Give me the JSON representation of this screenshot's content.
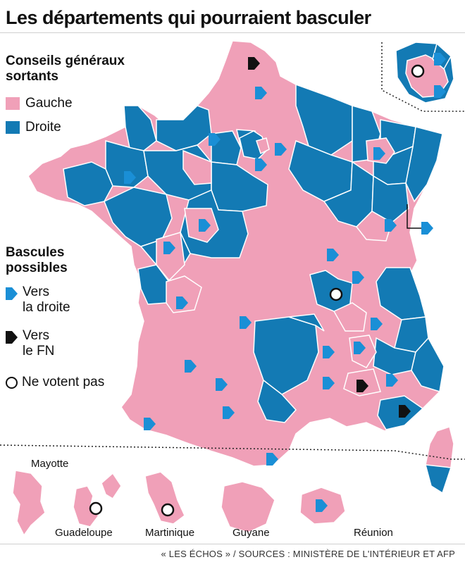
{
  "title": "Les départements qui pourraient basculer",
  "legend": {
    "councils_heading_line1": "Conseils généraux",
    "councils_heading_line2": "sortants",
    "left_label": "Gauche",
    "right_label": "Droite",
    "swing_heading_line1": "Bascules",
    "swing_heading_line2": "possibles",
    "to_right_line1": "Vers",
    "to_right_line2": "la droite",
    "to_fn_line1": "Vers",
    "to_fn_line2": "le FN",
    "no_vote_label": "Ne votent pas"
  },
  "colors": {
    "gauche": "#f0a0b8",
    "droite": "#137ab4",
    "arrow_right": "#1a8fd6",
    "arrow_fn": "#111111",
    "border": "#ffffff"
  },
  "overseas": {
    "mayotte": "Mayotte",
    "guadeloupe": "Guadeloupe",
    "martinique": "Martinique",
    "guyane": "Guyane",
    "reunion": "Réunion"
  },
  "footer": "« LES ÉCHOS » / SOURCES : MINISTÈRE DE L'INTÉRIEUR ET AFP"
}
